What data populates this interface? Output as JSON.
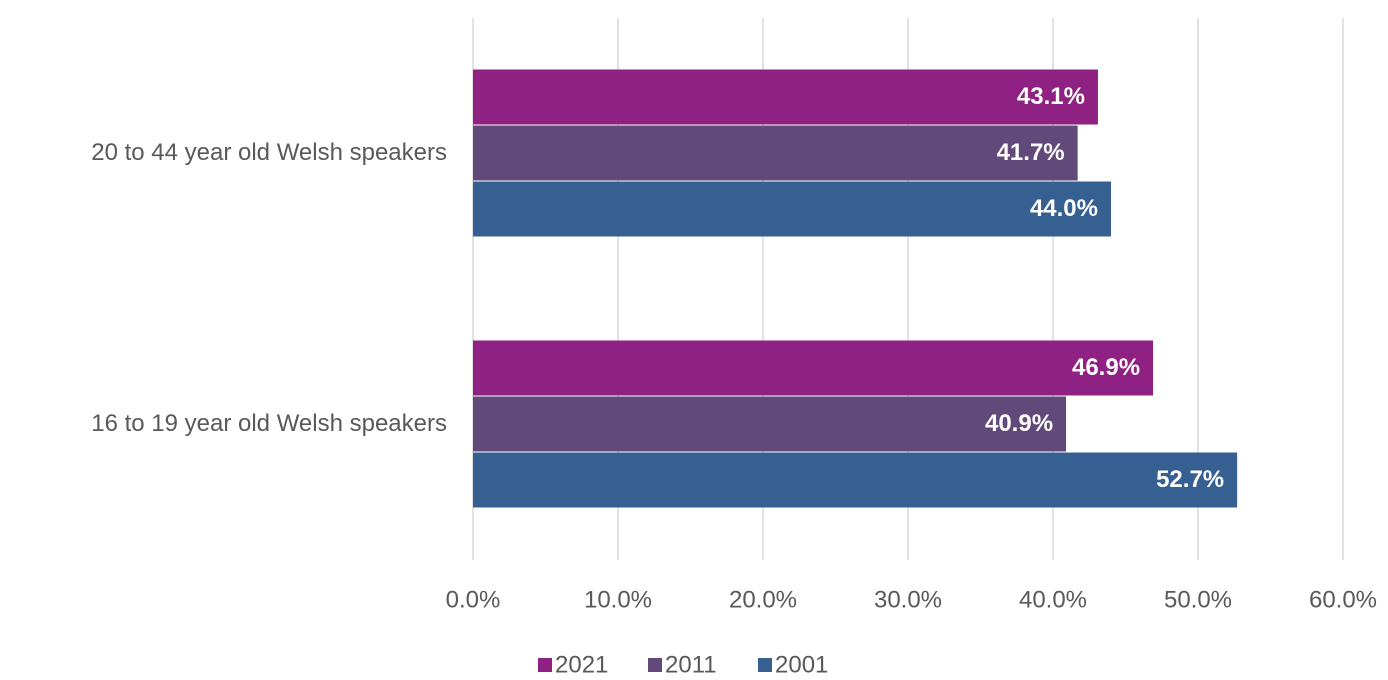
{
  "chart_data": {
    "type": "bar",
    "orientation": "horizontal",
    "categories": [
      "20 to 44 year old Welsh speakers",
      "16 to 19 year old Welsh speakers"
    ],
    "series": [
      {
        "name": "2021",
        "color": "#8e2182",
        "values": [
          43.1,
          46.9
        ],
        "value_labels": [
          "43.1%",
          "46.9%"
        ]
      },
      {
        "name": "2011",
        "color": "#614a7a",
        "values": [
          41.7,
          40.9
        ],
        "value_labels": [
          "41.7%",
          "40.9%"
        ]
      },
      {
        "name": "2001",
        "color": "#366091",
        "values": [
          44.0,
          52.7
        ],
        "value_labels": [
          "44.0%",
          "52.7%"
        ]
      }
    ],
    "xlim": [
      0,
      60
    ],
    "xticks": [
      {
        "value": 0,
        "label": "0.0%"
      },
      {
        "value": 10,
        "label": "10.0%"
      },
      {
        "value": 20,
        "label": "20.0%"
      },
      {
        "value": 30,
        "label": "30.0%"
      },
      {
        "value": 40,
        "label": "40.0%"
      },
      {
        "value": 50,
        "label": "50.0%"
      },
      {
        "value": 60,
        "label": "60.0%"
      }
    ],
    "grid": true,
    "legend": "bottom"
  }
}
